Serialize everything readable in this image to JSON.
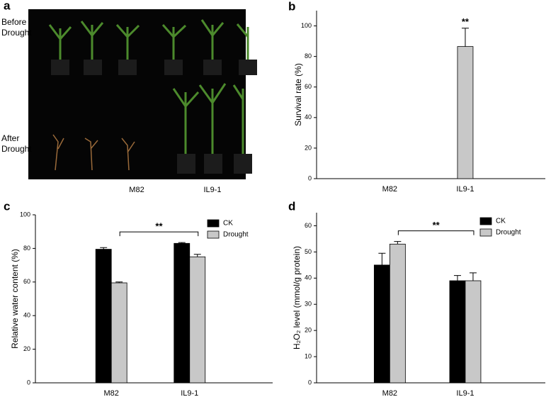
{
  "image_panel": {
    "label": "a",
    "row_labels": [
      "Before Drought",
      "After Drought"
    ],
    "column_labels": [
      "M82",
      "IL9-1"
    ]
  },
  "chart_data": [
    {
      "type": "bar",
      "panel_label": "b",
      "ylabel": "Survival rate (%)",
      "categories": [
        "M82",
        "IL9-1"
      ],
      "values": [
        0,
        86.5
      ],
      "errors": [
        null,
        12
      ],
      "color": "#c8c8c8",
      "annotation": "**",
      "ylim": [
        0,
        110
      ],
      "yticks": [
        0,
        20,
        40,
        60,
        80,
        100
      ]
    },
    {
      "type": "grouped_bar",
      "panel_label": "c",
      "ylabel": "Relative water content (%)",
      "categories": [
        "M82",
        "IL9-1"
      ],
      "series": [
        {
          "name": "CK",
          "color": "#000000",
          "values": [
            79.5,
            83
          ],
          "errors": [
            1,
            0.5
          ]
        },
        {
          "name": "Drought",
          "color": "#c8c8c8",
          "values": [
            59.5,
            75
          ],
          "errors": [
            0.5,
            1.5
          ]
        }
      ],
      "annotation": "**",
      "ylim": [
        0,
        100
      ],
      "yticks": [
        0,
        20,
        40,
        60,
        80,
        100
      ]
    },
    {
      "type": "grouped_bar",
      "panel_label": "d",
      "ylabel": "H₂O₂ level (mmol/g protein)",
      "categories": [
        "M82",
        "IL9-1"
      ],
      "series": [
        {
          "name": "CK",
          "color": "#000000",
          "values": [
            45,
            39
          ],
          "errors": [
            4.5,
            2
          ]
        },
        {
          "name": "Drought",
          "color": "#c8c8c8",
          "values": [
            53,
            39
          ],
          "errors": [
            1,
            3
          ]
        }
      ],
      "annotation": "**",
      "ylim": [
        0,
        65
      ],
      "yticks": [
        0,
        10,
        20,
        30,
        40,
        50,
        60
      ]
    }
  ]
}
